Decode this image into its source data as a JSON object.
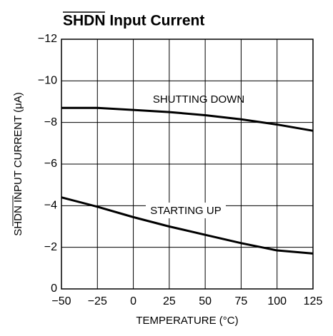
{
  "chart_data": {
    "type": "line",
    "title": "SHDN Input Current",
    "xlabel": "TEMPERATURE (°C)",
    "ylabel": "SHDN INPUT CURRENT (μA)",
    "x": [
      -50,
      -25,
      0,
      25,
      50,
      75,
      100,
      125
    ],
    "series": [
      {
        "name": "SHUTTING DOWN",
        "color": "#000000",
        "values": [
          -8.7,
          -8.7,
          -8.6,
          -8.5,
          -8.35,
          -8.15,
          -7.9,
          -7.6
        ]
      },
      {
        "name": "STARTING UP",
        "color": "#000000",
        "values": [
          -4.4,
          -3.95,
          -3.45,
          -3.0,
          -2.6,
          -2.2,
          -1.85,
          -1.7
        ]
      }
    ],
    "xlim": [
      -50,
      125
    ],
    "xticks": [
      {
        "value": -50,
        "label": "−50"
      },
      {
        "value": -25,
        "label": "−25"
      },
      0,
      25,
      50,
      75,
      100,
      125
    ],
    "ylim": [
      0,
      -12
    ],
    "yticks": [
      0,
      {
        "value": -2,
        "label": "−2"
      },
      {
        "value": -4,
        "label": "−4"
      },
      {
        "value": -6,
        "label": "−6"
      },
      {
        "value": -8,
        "label": "−8"
      },
      {
        "value": -10,
        "label": "−10"
      },
      {
        "value": -12,
        "label": "−12"
      }
    ],
    "grid": true
  }
}
